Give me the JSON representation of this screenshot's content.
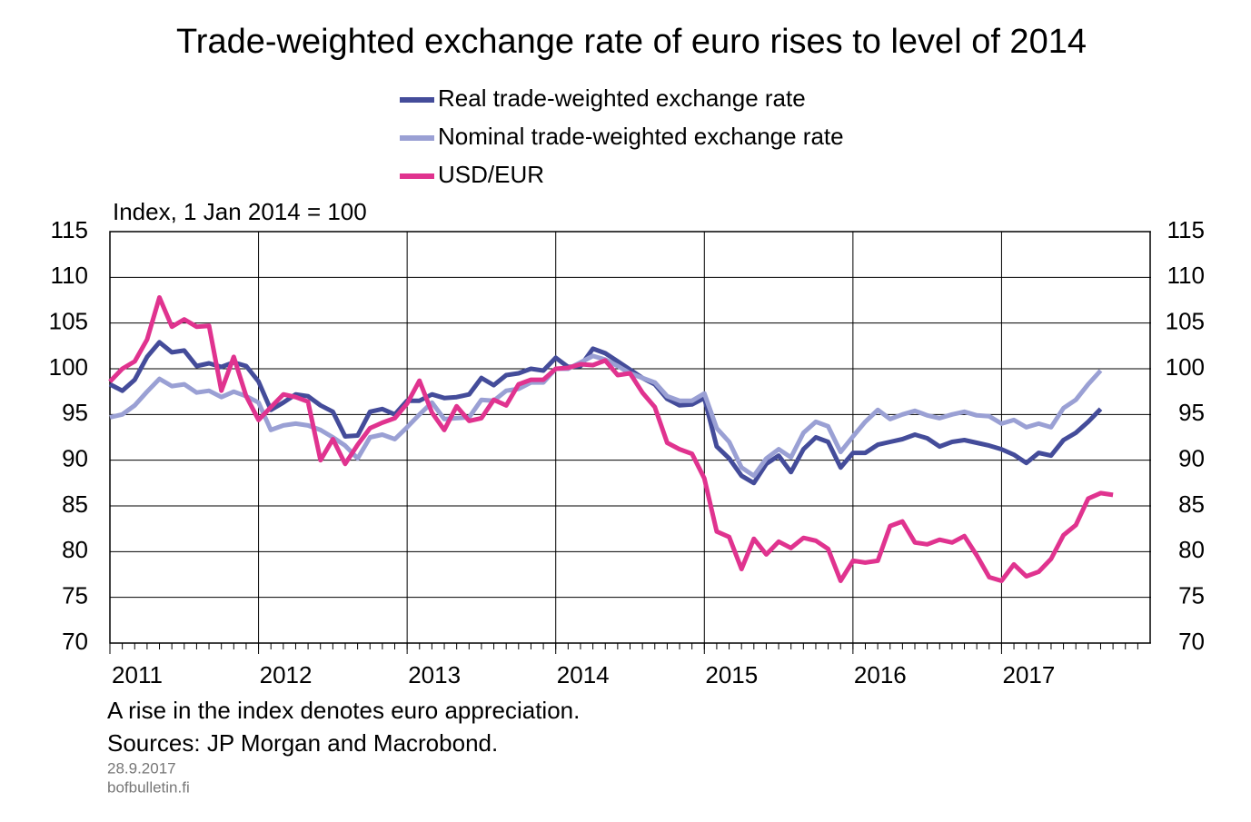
{
  "chart_data": {
    "type": "line",
    "title": "Trade-weighted exchange rate of euro rises to level of 2014",
    "y_label": "Index, 1 Jan 2014 = 100",
    "notes": [
      "A rise in the index denotes euro appreciation.",
      "Sources: JP Morgan and Macrobond."
    ],
    "date": "28.9.2017",
    "source_site": "bofbulletin.fi",
    "legend": "top",
    "grid": true,
    "xlim": [
      2011,
      2018
    ],
    "xticks": [
      2011,
      2012,
      2013,
      2014,
      2015,
      2016,
      2017
    ],
    "ylim": [
      70,
      115
    ],
    "yticks": [
      70,
      75,
      80,
      85,
      90,
      95,
      100,
      105,
      110,
      115
    ],
    "y2lim": [
      70,
      115
    ],
    "y2ticks": [
      70,
      75,
      80,
      85,
      90,
      95,
      100,
      105,
      110,
      115
    ],
    "x": [
      2011,
      2011.083,
      2011.167,
      2011.25,
      2011.333,
      2011.417,
      2011.5,
      2011.583,
      2011.667,
      2011.75,
      2011.833,
      2011.917,
      2012,
      2012.083,
      2012.167,
      2012.25,
      2012.333,
      2012.417,
      2012.5,
      2012.583,
      2012.667,
      2012.75,
      2012.833,
      2012.917,
      2013,
      2013.083,
      2013.167,
      2013.25,
      2013.333,
      2013.417,
      2013.5,
      2013.583,
      2013.667,
      2013.75,
      2013.833,
      2013.917,
      2014,
      2014.083,
      2014.167,
      2014.25,
      2014.333,
      2014.417,
      2014.5,
      2014.583,
      2014.667,
      2014.75,
      2014.833,
      2014.917,
      2015,
      2015.083,
      2015.167,
      2015.25,
      2015.333,
      2015.417,
      2015.5,
      2015.583,
      2015.667,
      2015.75,
      2015.833,
      2015.917,
      2016,
      2016.083,
      2016.167,
      2016.25,
      2016.333,
      2016.417,
      2016.5,
      2016.583,
      2016.667,
      2016.75,
      2016.833,
      2016.917,
      2017,
      2017.083,
      2017.167,
      2017.25,
      2017.333,
      2017.417,
      2017.5,
      2017.583,
      2017.667,
      2017.75
    ],
    "series": [
      {
        "name": "Real trade-weighted exchange rate",
        "color": "#444c9a",
        "values": [
          98.3,
          97.6,
          98.8,
          101.3,
          102.9,
          101.8,
          102.0,
          100.3,
          100.6,
          100.2,
          100.7,
          100.3,
          98.6,
          95.5,
          96.3,
          97.2,
          97.0,
          96.0,
          95.3,
          92.6,
          92.7,
          95.3,
          95.6,
          95.0,
          96.5,
          96.5,
          97.2,
          96.8,
          96.9,
          97.2,
          99.0,
          98.2,
          99.3,
          99.5,
          100.0,
          99.8,
          101.2,
          100.2,
          100.3,
          102.2,
          101.7,
          100.8,
          99.9,
          99.0,
          98.3,
          96.7,
          96.0,
          96.1,
          96.8,
          91.5,
          90.2,
          88.3,
          87.5,
          89.6,
          90.5,
          88.7,
          91.2,
          92.5,
          92.0,
          89.2,
          90.8,
          90.8,
          91.7,
          92.0,
          92.3,
          92.8,
          92.4,
          91.5,
          92.0,
          92.2,
          91.9,
          91.6,
          91.2,
          90.6,
          89.7,
          90.8,
          90.5,
          92.2,
          93.0,
          94.2,
          95.6,
          null
        ]
      },
      {
        "name": "Nominal trade-weighted exchange rate",
        "color": "#9aa0d4",
        "values": [
          94.7,
          95.0,
          96.0,
          97.5,
          98.9,
          98.1,
          98.3,
          97.4,
          97.6,
          96.9,
          97.5,
          97.0,
          96.3,
          93.3,
          93.8,
          94.0,
          93.8,
          93.3,
          92.5,
          91.6,
          90.2,
          92.5,
          92.8,
          92.3,
          93.6,
          95.0,
          96.3,
          94.5,
          94.6,
          94.7,
          96.6,
          96.5,
          97.6,
          97.8,
          98.5,
          98.5,
          100.0,
          100.0,
          100.7,
          101.4,
          101.0,
          100.3,
          99.5,
          99.0,
          98.5,
          97.0,
          96.5,
          96.5,
          97.3,
          93.5,
          92.0,
          89.2,
          88.3,
          90.2,
          91.2,
          90.3,
          93.0,
          94.2,
          93.7,
          90.9,
          92.6,
          94.2,
          95.5,
          94.5,
          95.0,
          95.4,
          94.9,
          94.6,
          95.0,
          95.3,
          94.9,
          94.8,
          94.0,
          94.4,
          93.6,
          94.0,
          93.6,
          95.7,
          96.6,
          98.3,
          99.8,
          null
        ]
      },
      {
        "name": "USD/EUR",
        "color": "#e0338f",
        "values": [
          98.6,
          100.0,
          100.8,
          103.2,
          107.8,
          104.6,
          105.4,
          104.6,
          104.7,
          97.6,
          101.3,
          97.0,
          94.4,
          95.8,
          97.2,
          96.9,
          96.4,
          90.0,
          92.3,
          89.6,
          91.7,
          93.5,
          94.1,
          94.6,
          96.2,
          98.7,
          95.2,
          93.3,
          95.9,
          94.3,
          94.6,
          96.6,
          96.0,
          98.3,
          98.8,
          98.8,
          100.0,
          100.1,
          100.5,
          100.4,
          100.9,
          99.3,
          99.5,
          97.4,
          95.8,
          91.9,
          91.2,
          90.7,
          88.0,
          82.2,
          81.6,
          78.1,
          81.4,
          79.7,
          81.1,
          80.4,
          81.5,
          81.2,
          80.3,
          76.8,
          79.0,
          78.8,
          79.0,
          82.8,
          83.3,
          81.0,
          80.8,
          81.3,
          81.0,
          81.7,
          79.6,
          77.2,
          76.8,
          78.6,
          77.3,
          77.8,
          79.2,
          81.8,
          82.9,
          85.8,
          86.4,
          86.2
        ]
      }
    ]
  }
}
